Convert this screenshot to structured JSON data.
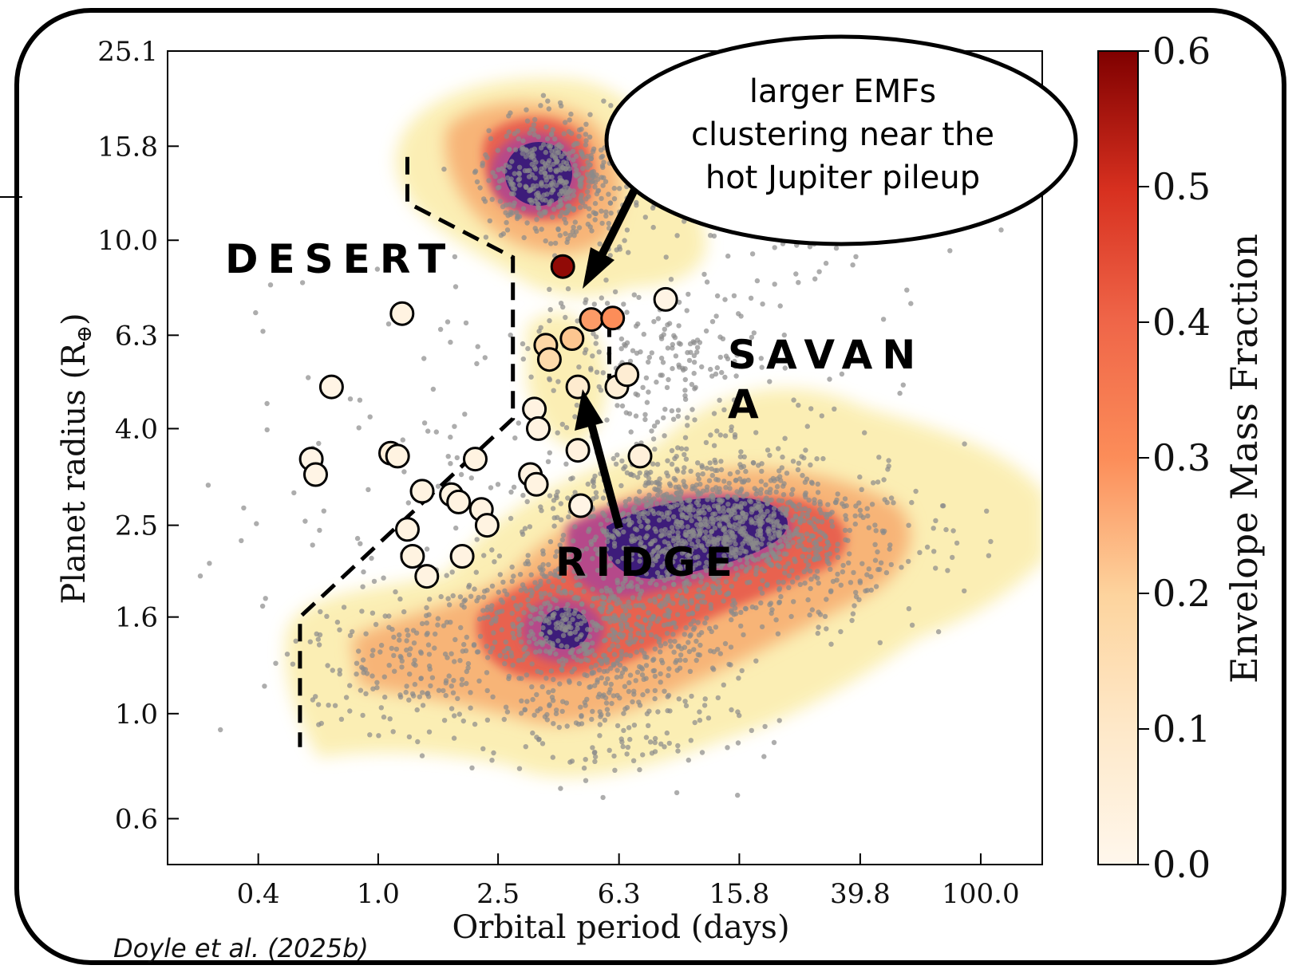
{
  "chart_data": {
    "type": "scatter",
    "x_axis": {
      "label": "Orbital period (days)",
      "scale": "log",
      "range": [
        0.2,
        160
      ],
      "ticks": [
        0.4,
        1.0,
        2.5,
        6.3,
        15.8,
        39.8,
        100.0
      ],
      "tick_labels": [
        "0.4",
        "1.0",
        "2.5",
        "6.3",
        "15.8",
        "39.8",
        "100.0"
      ]
    },
    "y_axis": {
      "label_main": "Planet radius (R",
      "label_sub": "⊕",
      "label_end": ")",
      "scale": "log",
      "range": [
        0.48,
        25.1
      ],
      "ticks": [
        0.6,
        1.0,
        1.6,
        2.5,
        4.0,
        6.3,
        10.0,
        15.8,
        25.1
      ],
      "tick_labels": [
        "0.6",
        "1.0",
        "1.6",
        "2.5",
        "4.0",
        "6.3",
        "10.0",
        "15.8",
        "25.1"
      ]
    },
    "colorbar": {
      "label": "Envelope Mass Fraction",
      "range": [
        0.0,
        0.6
      ],
      "ticks": [
        0.0,
        0.1,
        0.2,
        0.3,
        0.4,
        0.5,
        0.6
      ],
      "tick_labels": [
        "0.0",
        "0.1",
        "0.2",
        "0.3",
        "0.4",
        "0.5",
        "0.6"
      ],
      "colormap": "OrRd"
    },
    "highlighted_planets": [
      {
        "period": 4.1,
        "radius": 8.8,
        "emf": 0.58
      },
      {
        "period": 1.2,
        "radius": 7.0,
        "emf": 0.03
      },
      {
        "period": 9.0,
        "radius": 7.5,
        "emf": 0.02
      },
      {
        "period": 5.1,
        "radius": 6.8,
        "emf": 0.28
      },
      {
        "period": 6.0,
        "radius": 6.85,
        "emf": 0.3
      },
      {
        "period": 3.6,
        "radius": 6.0,
        "emf": 0.18
      },
      {
        "period": 4.4,
        "radius": 6.2,
        "emf": 0.22
      },
      {
        "period": 3.7,
        "radius": 5.6,
        "emf": 0.17
      },
      {
        "period": 4.6,
        "radius": 4.9,
        "emf": 0.08
      },
      {
        "period": 6.2,
        "radius": 4.9,
        "emf": 0.06
      },
      {
        "period": 6.7,
        "radius": 5.2,
        "emf": 0.07
      },
      {
        "period": 0.7,
        "radius": 4.9,
        "emf": 0.02
      },
      {
        "period": 3.3,
        "radius": 4.4,
        "emf": 0.03
      },
      {
        "period": 3.4,
        "radius": 4.0,
        "emf": 0.03
      },
      {
        "period": 4.6,
        "radius": 3.6,
        "emf": 0.04
      },
      {
        "period": 7.4,
        "radius": 3.5,
        "emf": 0.05
      },
      {
        "period": 0.6,
        "radius": 3.45,
        "emf": 0.02
      },
      {
        "period": 0.62,
        "radius": 3.2,
        "emf": 0.02
      },
      {
        "period": 1.1,
        "radius": 3.55,
        "emf": 0.05
      },
      {
        "period": 1.16,
        "radius": 3.5,
        "emf": 0.03
      },
      {
        "period": 2.1,
        "radius": 3.45,
        "emf": 0.03
      },
      {
        "period": 3.2,
        "radius": 3.2,
        "emf": 0.03
      },
      {
        "period": 3.35,
        "radius": 3.05,
        "emf": 0.03
      },
      {
        "period": 1.4,
        "radius": 2.95,
        "emf": 0.03
      },
      {
        "period": 1.75,
        "radius": 2.9,
        "emf": 0.03
      },
      {
        "period": 1.85,
        "radius": 2.8,
        "emf": 0.03
      },
      {
        "period": 2.2,
        "radius": 2.7,
        "emf": 0.03
      },
      {
        "period": 2.3,
        "radius": 2.5,
        "emf": 0.03
      },
      {
        "period": 4.7,
        "radius": 2.75,
        "emf": 0.02
      },
      {
        "period": 1.25,
        "radius": 2.45,
        "emf": 0.03
      },
      {
        "period": 1.9,
        "radius": 2.15,
        "emf": 0.03
      },
      {
        "period": 1.3,
        "radius": 2.15,
        "emf": 0.03
      },
      {
        "period": 1.45,
        "radius": 1.95,
        "emf": 0.03
      }
    ],
    "density_regions": [
      {
        "name": "hot-jupiter-cluster",
        "period": 3.8,
        "radius": 13.5
      },
      {
        "name": "sub-neptune-ridge-main",
        "period": 13,
        "radius": 2.55
      },
      {
        "name": "super-earth-cluster",
        "period": 4.5,
        "radius": 1.55
      }
    ],
    "desert_boundary": [
      {
        "period": 1.25,
        "radius": 15.0
      },
      {
        "period": 1.25,
        "radius": 12.0
      },
      {
        "period": 2.8,
        "radius": 9.2
      },
      {
        "period": 2.8,
        "radius": 4.2
      },
      {
        "period": 0.55,
        "radius": 1.6
      },
      {
        "period": 0.55,
        "radius": 0.85
      }
    ],
    "savanna_boundary": [
      {
        "period": 5.85,
        "radius": 6.8
      },
      {
        "period": 5.85,
        "radius": 5.0
      }
    ]
  },
  "annotations": {
    "desert": "DESERT",
    "savanna_line1": "SAVAN",
    "savanna_line2": "A",
    "ridge": "RIDGE",
    "callout_line1": "larger EMFs",
    "callout_line2": "clustering near the",
    "callout_line3": "hot Jupiter pileup",
    "citation": "Doyle et al. (2025b)"
  }
}
